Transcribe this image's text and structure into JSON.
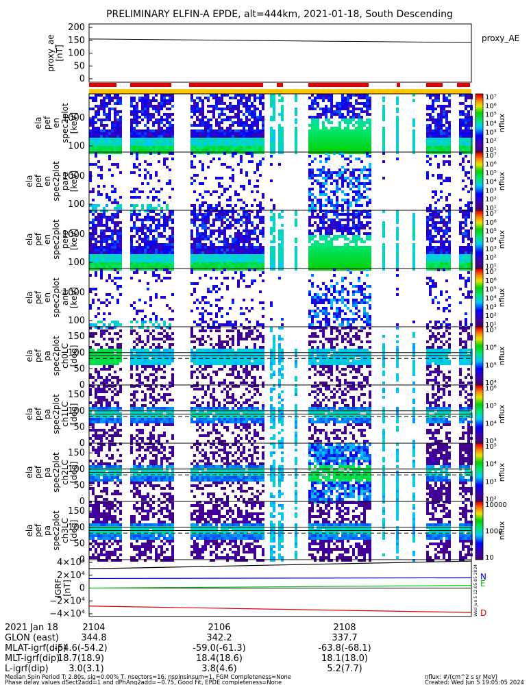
{
  "title": "PRELIMINARY ELFIN-A EPDE, alt=444km, 2021-01-18, South Descending",
  "chart_data": [
    {
      "type": "line",
      "ylabel": [
        "proxy_ae",
        "[nT]"
      ],
      "legend": "proxy_AE",
      "yticks": [
        "200",
        "150",
        "100",
        "50",
        "0"
      ],
      "ylim": [
        0,
        200
      ],
      "series": [
        {
          "name": "proxy_AE",
          "color": "#000000",
          "x": [
            0,
            1
          ],
          "values": [
            155,
            141
          ]
        }
      ]
    },
    {
      "type": "heatmap",
      "ylabel": [
        "ela",
        "pef",
        "en",
        "spec2plot",
        "[keV]"
      ],
      "yticks": [
        "1000",
        "100"
      ],
      "colorbar_label": "nflux",
      "colorbar_ticks": [
        "10⁷",
        "10⁶",
        "10⁵",
        "10⁴",
        "10³",
        "10²",
        "10¹"
      ]
    },
    {
      "type": "heatmap",
      "ylabel": [
        "ela",
        "pef",
        "en",
        "spec2plot",
        "para",
        "[keV]"
      ],
      "yticks": [
        "1000",
        "100"
      ],
      "colorbar_label": "nflux",
      "colorbar_ticks": [
        "10⁷",
        "10⁶",
        "10⁵",
        "10⁴",
        "10³",
        "10²",
        "10¹"
      ]
    },
    {
      "type": "heatmap",
      "ylabel": [
        "ela",
        "pef",
        "en",
        "spec2plot",
        "perp",
        "[keV]"
      ],
      "yticks": [
        "1000",
        "100"
      ],
      "colorbar_label": "nflux",
      "colorbar_ticks": [
        "10⁷",
        "10⁶",
        "10⁵",
        "10⁴",
        "10³",
        "10²",
        "10¹"
      ]
    },
    {
      "type": "heatmap",
      "ylabel": [
        "ela",
        "pef",
        "en",
        "spec2plot",
        "anti",
        "[keV]"
      ],
      "yticks": [
        "1000",
        "100"
      ],
      "colorbar_label": "nflux",
      "colorbar_ticks": [
        "10⁷",
        "10⁶",
        "10⁵",
        "10⁴",
        "10³",
        "10²",
        "10¹"
      ]
    },
    {
      "type": "heatmap",
      "ylabel": [
        "ela",
        "pef",
        "pa",
        "spec2plot",
        "ch0LC",
        "[deg]"
      ],
      "yticks": [
        "150",
        "100",
        "50",
        "0"
      ],
      "colorbar_label": "nflux",
      "colorbar_ticks": [
        "10⁷",
        "10⁶",
        "10⁵",
        "10⁴"
      ]
    },
    {
      "type": "heatmap",
      "ylabel": [
        "ela",
        "pef",
        "pa",
        "spec2plot",
        "ch1LC",
        "[deg]"
      ],
      "yticks": [
        "150",
        "100",
        "50",
        "0"
      ],
      "colorbar_label": "nflux",
      "colorbar_ticks": [
        "10⁶",
        "10⁵",
        "10⁴",
        "10³"
      ]
    },
    {
      "type": "heatmap",
      "ylabel": [
        "ela",
        "pef",
        "pa",
        "spec2plot",
        "ch2LC",
        "[deg]"
      ],
      "yticks": [
        "150",
        "100",
        "50",
        "0"
      ],
      "colorbar_label": "nflux",
      "colorbar_ticks": [
        "10⁵",
        "10⁴",
        "10³",
        "10²"
      ]
    },
    {
      "type": "heatmap",
      "ylabel": [
        "ela",
        "pef",
        "pa",
        "spec2plot",
        "ch3LC",
        "[deg]"
      ],
      "yticks": [
        "150",
        "100",
        "50",
        "0"
      ],
      "colorbar_label": "nflux",
      "colorbar_ticks": [
        "10000",
        "1000",
        "10"
      ]
    },
    {
      "type": "line",
      "ylabel": [
        "IGRF",
        "[nT]"
      ],
      "yticks": [
        "4×10⁴",
        "2×10⁴",
        "0",
        "−2×10⁴",
        "−4×10⁴"
      ],
      "ylim": [
        -40000,
        40000
      ],
      "series": [
        {
          "name": "N",
          "color": "#0000ff",
          "x": [
            0,
            1
          ],
          "values": [
            15000,
            16000
          ]
        },
        {
          "name": "E",
          "color": "#00c000",
          "x": [
            0,
            1
          ],
          "values": [
            0,
            4000
          ]
        },
        {
          "name": "D",
          "color": "#e00000",
          "x": [
            0,
            1
          ],
          "values": [
            -28000,
            -38000
          ]
        },
        {
          "color": "#000000",
          "x": [
            0,
            1
          ],
          "values": [
            30000,
            42000
          ]
        }
      ]
    }
  ],
  "xaxis": {
    "rows": [
      {
        "label": "2021 Jan 18",
        "values": [
          "2104",
          "2106",
          "2108"
        ]
      },
      {
        "label": "GLON (east)",
        "values": [
          "344.8",
          "342.2",
          "337.7"
        ]
      },
      {
        "label": "MLAT-igrf(dip)",
        "values": [
          "-54.6(-54.2)",
          "-59.0(-61.3)",
          "-63.8(-68.1)"
        ]
      },
      {
        "label": "MLT-igrf(dip)",
        "values": [
          "18.7(18.9)",
          "18.4(18.6)",
          "18.1(18.0)"
        ]
      },
      {
        "label": "L-igrf(dip)",
        "values": [
          "3.0(3.1)",
          "3.8(4.6)",
          "5.2(7.7)"
        ]
      }
    ]
  },
  "footer": {
    "line1": "Median Spin Period T: 2.80s, sig=0.00% T, nsectors=16, nspinsinsum=1, FGM Completeness=None",
    "line2": "Phase delay values dSect2add=1 and dPhAng2add=−0.75, Good Fit, EPDE completeness=None",
    "units": "nflux: #/(cm^2 s sr MeV)",
    "created": "Created: Wed Jun  5 19:05:05 2024"
  },
  "side_stamp": "Wed Jun  5 12:05:05 2024"
}
